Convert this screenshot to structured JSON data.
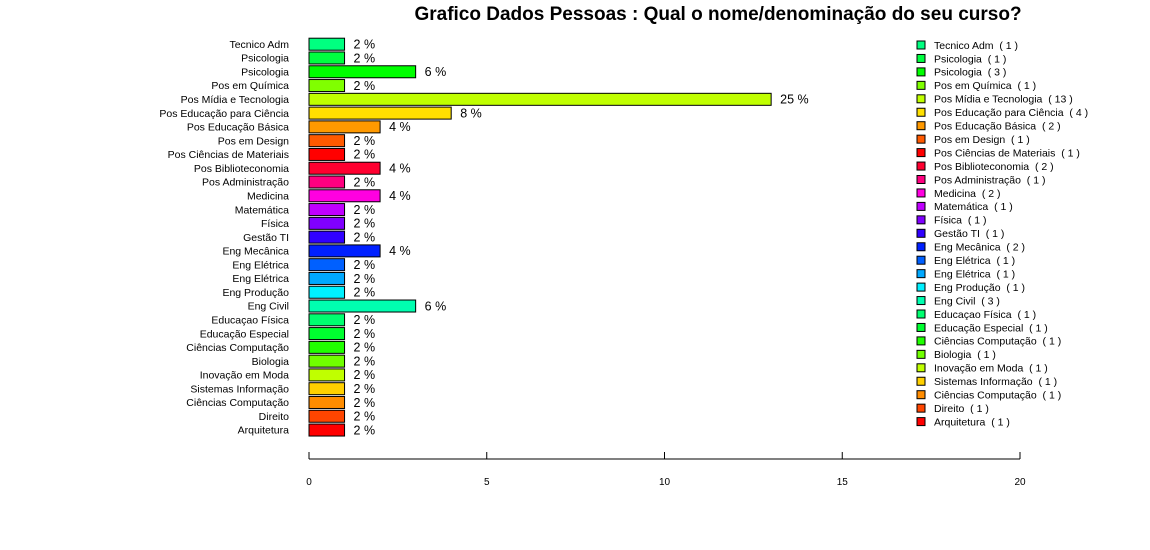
{
  "chart_data": {
    "type": "bar",
    "orientation": "horizontal",
    "title": "Grafico Dados Pessoas : Qual o nome/denominação do seu curso?",
    "xlabel": "",
    "ylabel": "",
    "xlim": [
      0,
      20
    ],
    "xticks": [
      "0",
      "5",
      "10",
      "15",
      "20"
    ],
    "grid": false,
    "legend_position": "right",
    "categories": [
      "Tecnico Adm",
      "Psicologia",
      "Psicologia",
      "Pos em Química",
      "Pos Mídia e Tecnologia",
      "Pos Educação para Ciência",
      "Pos Educação Básica",
      "Pos em Design",
      "Pos Ciências de Materiais",
      "Pos Biblioteconomia",
      "Pos Administração",
      "Medicina",
      "Matemática",
      "Física",
      "Gestão TI",
      "Eng Mecânica",
      "Eng Elétrica",
      "Eng Elétrica",
      "Eng Produção",
      "Eng Civil",
      "Educaçao Física",
      "Educação Especial",
      "Ciências Computação",
      "Biologia",
      "Inovação em Moda",
      "Sistemas Informação",
      "Ciências Computação",
      "Direito",
      "Arquitetura"
    ],
    "values": [
      1,
      1,
      3,
      1,
      13,
      4,
      2,
      1,
      1,
      2,
      1,
      2,
      1,
      1,
      1,
      2,
      1,
      1,
      1,
      3,
      1,
      1,
      1,
      1,
      1,
      1,
      1,
      1,
      1
    ],
    "value_labels": [
      "2 %",
      "2 %",
      "6 %",
      "2 %",
      "25 %",
      "8 %",
      "4 %",
      "2 %",
      "2 %",
      "4 %",
      "2 %",
      "4 %",
      "2 %",
      "2 %",
      "2 %",
      "4 %",
      "2 %",
      "2 %",
      "2 %",
      "6 %",
      "2 %",
      "2 %",
      "2 %",
      "2 %",
      "2 %",
      "2 %",
      "2 %",
      "2 %",
      "2 %"
    ],
    "legend_entries": [
      "Tecnico Adm  ( 1 )",
      "Psicologia  ( 1 )",
      "Psicologia  ( 3 )",
      "Pos em Química  ( 1 )",
      "Pos Mídia e Tecnologia  ( 13 )",
      "Pos Educação para Ciência  ( 4 )",
      "Pos Educação Básica  ( 2 )",
      "Pos em Design  ( 1 )",
      "Pos Ciências de Materiais  ( 1 )",
      "Pos Biblioteconomia  ( 2 )",
      "Pos Administração  ( 1 )",
      "Medicina  ( 2 )",
      "Matemática  ( 1 )",
      "Física  ( 1 )",
      "Gestão TI  ( 1 )",
      "Eng Mecânica  ( 2 )",
      "Eng Elétrica  ( 1 )",
      "Eng Elétrica  ( 1 )",
      "Eng Produção  ( 1 )",
      "Eng Civil  ( 3 )",
      "Educaçao Física  ( 1 )",
      "Educação Especial  ( 1 )",
      "Ciências Computação  ( 1 )",
      "Biologia  ( 1 )",
      "Inovação em Moda  ( 1 )",
      "Sistemas Informação  ( 1 )",
      "Ciências Computação  ( 1 )",
      "Direito  ( 1 )",
      "Arquitetura  ( 1 )"
    ],
    "colors": [
      "#00FF80",
      "#00FF40",
      "#00FF00",
      "#80FF00",
      "#C0FF00",
      "#FFE000",
      "#FF9900",
      "#FF5A00",
      "#FF0000",
      "#FF0030",
      "#FF0080",
      "#FF00E0",
      "#C000FF",
      "#8000FF",
      "#3000FF",
      "#0020FF",
      "#0060FF",
      "#00A8FF",
      "#00F0FF",
      "#00FFB0",
      "#00FF70",
      "#00FF30",
      "#20FF00",
      "#70FF00",
      "#C0FF00",
      "#FFD000",
      "#FF8C00",
      "#FF4500",
      "#FF0000"
    ]
  }
}
